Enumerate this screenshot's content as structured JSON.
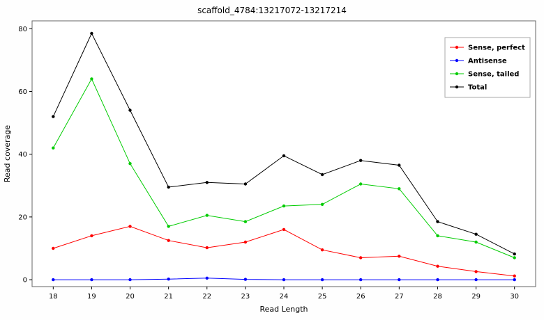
{
  "chart_data": {
    "type": "line",
    "title": "scaffold_4784:13217072-13217214",
    "xlabel": "Read Length",
    "ylabel": "Read coverage",
    "x": [
      18,
      19,
      20,
      21,
      22,
      23,
      24,
      25,
      26,
      27,
      28,
      29,
      30
    ],
    "xlim": [
      17.45,
      30.55
    ],
    "ylim": [
      0,
      80
    ],
    "yticks": [
      0,
      20,
      40,
      60,
      80
    ],
    "grid": false,
    "legend_position": "top-right",
    "panel_border_color": "#666666",
    "series": [
      {
        "name": "Sense, perfect",
        "color": "#ff0000",
        "values": [
          10,
          14,
          17,
          12.5,
          10.2,
          12,
          16,
          9.5,
          7,
          7.5,
          4.3,
          2.6,
          1.2
        ]
      },
      {
        "name": "Antisense",
        "color": "#0000ff",
        "values": [
          0,
          0,
          0,
          0.2,
          0.5,
          0.1,
          0,
          0,
          0,
          0,
          0,
          0,
          0
        ]
      },
      {
        "name": "Sense, tailed",
        "color": "#00cc00",
        "values": [
          42,
          64,
          37,
          17,
          20.5,
          18.5,
          23.5,
          24,
          30.5,
          29,
          14,
          12,
          7
        ]
      },
      {
        "name": "Total",
        "color": "#000000",
        "values": [
          52,
          78.5,
          54,
          29.5,
          31,
          30.5,
          39.5,
          33.5,
          38,
          36.5,
          18.5,
          14.5,
          8.2
        ]
      }
    ]
  }
}
